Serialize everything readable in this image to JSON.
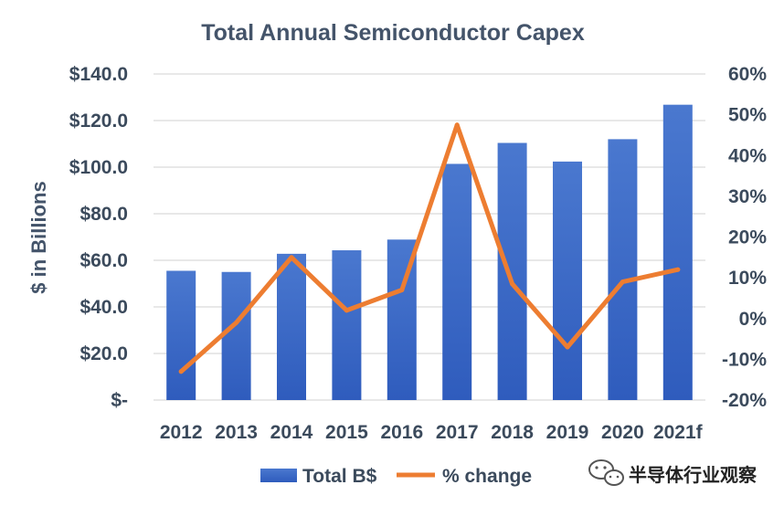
{
  "chart_data": {
    "type": "bar",
    "title": "Total Annual Semiconductor Capex",
    "categories": [
      "2012",
      "2013",
      "2014",
      "2015",
      "2016",
      "2017",
      "2018",
      "2019",
      "2020",
      "2021f"
    ],
    "series": [
      {
        "name": "Total B$",
        "kind": "bar",
        "axis": "left",
        "color": "#4472c4",
        "values": [
          55.5,
          55.0,
          62.8,
          64.3,
          68.9,
          101.4,
          110.4,
          102.4,
          112.0,
          126.8
        ]
      },
      {
        "name": "% change",
        "kind": "line",
        "axis": "right",
        "color": "#ed7d31",
        "values": [
          -13,
          -1,
          15,
          2,
          7,
          47.5,
          8.5,
          -7,
          9,
          12
        ]
      }
    ],
    "ylabel": "$ in Billions",
    "ylim": [
      0,
      140
    ],
    "y2lim": [
      -20,
      60
    ],
    "yticks": [
      "$-",
      "$20.0",
      "$40.0",
      "$60.0",
      "$80.0",
      "$100.0",
      "$120.0",
      "$140.0"
    ],
    "y2ticks": [
      "-20%",
      "-10%",
      "0%",
      "10%",
      "20%",
      "30%",
      "40%",
      "50%",
      "60%"
    ],
    "grid": true,
    "legend": "bottom"
  },
  "watermark": {
    "text": "半导体行业观察",
    "icon": "wechat-icon"
  }
}
